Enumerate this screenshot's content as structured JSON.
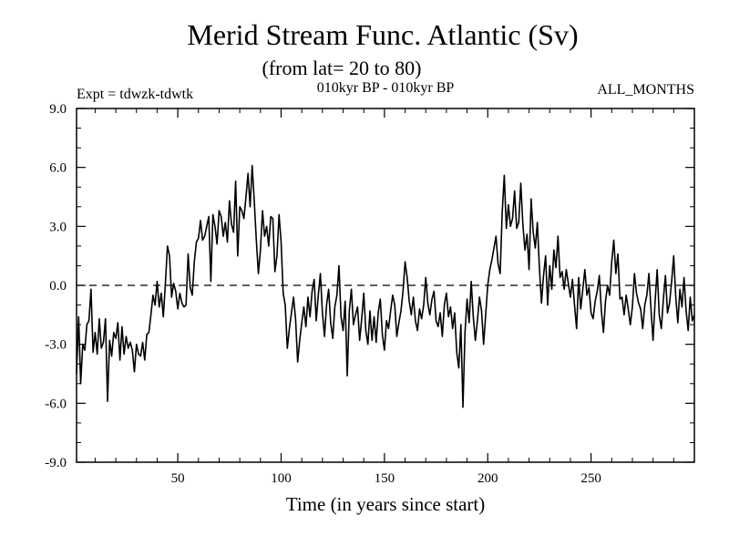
{
  "chart_data": {
    "type": "line",
    "title": "Merid Stream Func. Atlantic (Sv)",
    "subtitle": "(from lat= 20 to 80)",
    "left_note": "Expt = tdwzk-tdwtk",
    "center_note": "010kyr BP - 010kyr BP",
    "right_note": "ALL_MONTHS",
    "xlabel": "Time (in years since start)",
    "ylabel": "",
    "xlim": [
      1,
      300
    ],
    "ylim": [
      -9,
      9
    ],
    "x_ticks": [
      50,
      100,
      150,
      200,
      250
    ],
    "x_tick_labels": [
      "50",
      "100",
      "150",
      "200",
      "250"
    ],
    "y_ticks": [
      -9,
      -6,
      -3,
      0,
      3,
      6,
      9
    ],
    "y_tick_labels": [
      "-9.0",
      "-6.0",
      "-3.0",
      "0.0",
      "3.0",
      "6.0",
      "9.0"
    ],
    "reference_line": 0,
    "line_color": "#000000",
    "series": [
      {
        "x_start": 1,
        "x_step": 1,
        "values": [
          -4.5,
          -1.6,
          -5.0,
          -3.0,
          -3.3,
          -2.0,
          -1.8,
          -0.2,
          -3.4,
          -2.4,
          -3.5,
          -1.7,
          -3.2,
          -2.9,
          -1.7,
          -5.9,
          -2.8,
          -3.6,
          -2.4,
          -2.7,
          -1.9,
          -3.8,
          -2.1,
          -3.5,
          -2.6,
          -3.2,
          -2.9,
          -3.3,
          -4.4,
          -3.0,
          -3.5,
          -3.6,
          -2.9,
          -3.8,
          -2.5,
          -2.4,
          -1.5,
          -0.5,
          -1.0,
          0.2,
          -1.1,
          -0.4,
          -1.6,
          0.1,
          2.0,
          1.5,
          -0.6,
          0.1,
          -0.3,
          -1.2,
          -0.4,
          -0.9,
          -1.1,
          -1.0,
          1.6,
          -0.1,
          -0.5,
          1.2,
          2.2,
          2.4,
          3.3,
          2.3,
          2.5,
          3.0,
          3.5,
          0.2,
          3.6,
          3.0,
          2.1,
          3.8,
          3.5,
          2.5,
          3.2,
          2.2,
          4.3,
          3.1,
          2.7,
          5.3,
          1.5,
          4.0,
          3.8,
          3.4,
          4.5,
          5.7,
          4.0,
          6.1,
          4.3,
          2.3,
          0.6,
          1.8,
          3.8,
          2.5,
          3.0,
          2.0,
          3.5,
          3.4,
          0.7,
          1.5,
          3.6,
          2.2
        ],
        "values_2": [
          -0.4,
          -1.0,
          -3.2,
          -2.2,
          -1.4,
          -0.6,
          -1.7,
          -3.9,
          -2.8,
          -1.9,
          -1.1,
          -2.1,
          -0.6,
          -1.6,
          -0.3,
          0.3,
          -1.8,
          -0.5,
          0.6,
          -1.4,
          -2.6,
          -1.0,
          -0.2,
          -1.9,
          -2.7,
          -1.1,
          -0.5,
          1.0,
          -1.6,
          -2.3,
          -0.8,
          -4.6,
          -1.3,
          -0.2,
          -2.0,
          -1.5,
          -1.1,
          -2.8,
          -1.7,
          -0.4,
          -2.3,
          -3.0,
          -1.3,
          -2.8,
          -1.6,
          -2.9,
          -1.4,
          -0.7,
          -2.5,
          -3.3,
          -1.8,
          -2.2,
          -1.3,
          -0.5,
          -1.0,
          -2.6,
          -1.9,
          -1.3,
          -0.3,
          1.2,
          0.4,
          -0.8,
          -1.5,
          -0.6,
          -1.8,
          -2.3,
          -1.2,
          -1.7,
          -1.0,
          0.4,
          -0.9,
          -1.5,
          -0.7,
          -0.3,
          -1.8,
          -2.1,
          -1.4,
          -2.6,
          -1.0,
          -0.4,
          -1.6,
          -1.1,
          -2.2,
          -1.4,
          -3.4,
          -4.2,
          -2.0,
          -6.2,
          -2.4,
          -0.7,
          -1.9,
          0.2,
          -1.6,
          -2.8,
          -1.8,
          -0.6,
          -1.3,
          -3.0,
          -1.5,
          0.0
        ],
        "values_3": [
          0.8,
          1.3,
          1.9,
          2.5,
          1.1,
          0.6,
          3.7,
          5.6,
          2.9,
          4.1,
          3.0,
          3.4,
          4.8,
          2.9,
          3.2,
          5.2,
          3.1,
          1.8,
          2.6,
          0.8,
          4.4,
          2.7,
          1.9,
          3.2,
          0.9,
          -0.9,
          0.5,
          1.5,
          -1.0,
          1.0,
          -0.2,
          1.8,
          0.9,
          2.5,
          0.4,
          0.7,
          -0.2,
          0.8,
          0.1,
          -0.6,
          0.3,
          -1.0,
          -2.2,
          0.4,
          -1.2,
          -0.2,
          0.8,
          -0.5,
          -0.1,
          -1.4,
          -1.7,
          -0.8,
          -0.3,
          0.5,
          -1.3,
          -2.4,
          -0.8,
          0.0,
          -0.5,
          1.2,
          2.3,
          0.6,
          1.6,
          -0.7,
          -0.6,
          -1.5,
          -0.5,
          -1.2,
          -2.0,
          -1.1,
          0.6,
          -0.4,
          -0.9,
          -1.2,
          -2.2,
          -1.0,
          -0.5,
          0.6,
          -1.2,
          -2.8,
          -0.8,
          0.8,
          -1.5,
          -2.2,
          -0.7,
          0.5,
          -1.4,
          -0.9,
          0.2,
          1.5,
          -0.6,
          -1.9,
          -0.2,
          -1.1,
          0.4,
          -1.3,
          -2.3,
          -0.6,
          -1.8,
          -1.5
        ]
      }
    ]
  }
}
